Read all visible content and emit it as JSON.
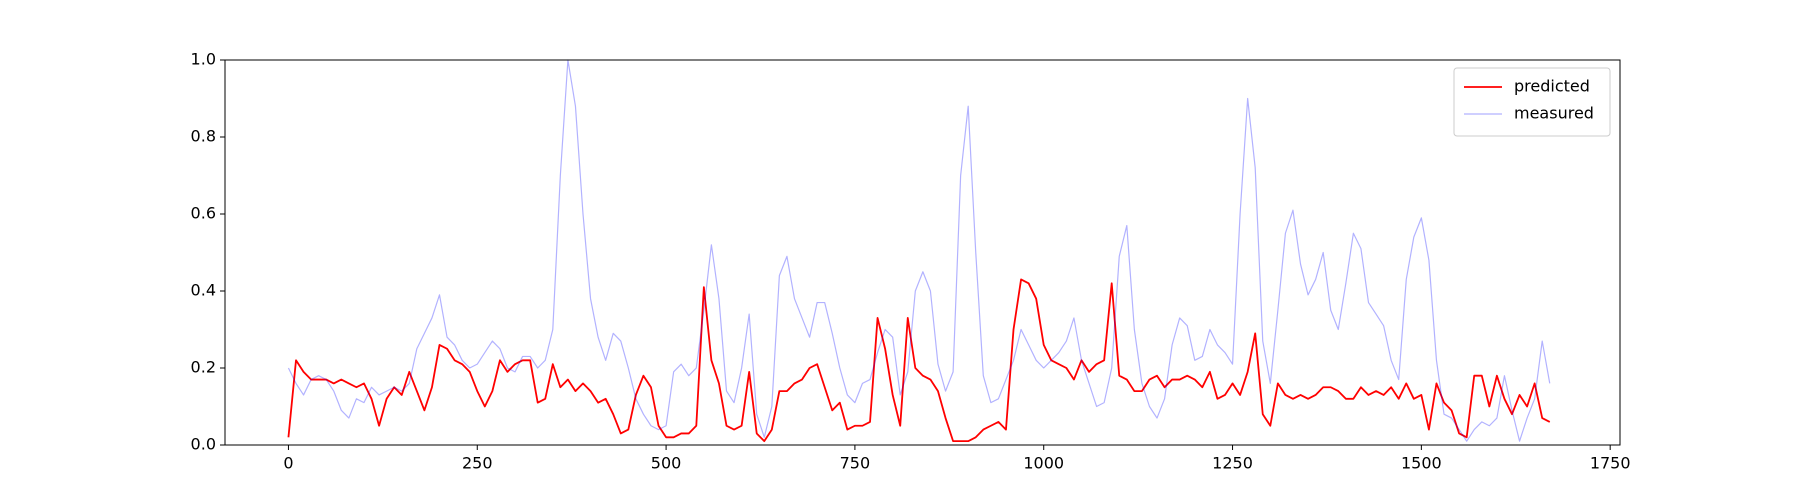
{
  "chart_data": {
    "type": "line",
    "x": [
      0,
      10,
      20,
      30,
      40,
      50,
      60,
      70,
      80,
      90,
      100,
      110,
      120,
      130,
      140,
      150,
      160,
      170,
      180,
      190,
      200,
      210,
      220,
      230,
      240,
      250,
      260,
      270,
      280,
      290,
      300,
      310,
      320,
      330,
      340,
      350,
      360,
      370,
      380,
      390,
      400,
      410,
      420,
      430,
      440,
      450,
      460,
      470,
      480,
      490,
      500,
      510,
      520,
      530,
      540,
      550,
      560,
      570,
      580,
      590,
      600,
      610,
      620,
      630,
      640,
      650,
      660,
      670,
      680,
      690,
      700,
      710,
      720,
      730,
      740,
      750,
      760,
      770,
      780,
      790,
      800,
      810,
      820,
      830,
      840,
      850,
      860,
      870,
      880,
      890,
      900,
      910,
      920,
      930,
      940,
      950,
      960,
      970,
      980,
      990,
      1000,
      1010,
      1020,
      1030,
      1040,
      1050,
      1060,
      1070,
      1080,
      1090,
      1100,
      1110,
      1120,
      1130,
      1140,
      1150,
      1160,
      1170,
      1180,
      1190,
      1200,
      1210,
      1220,
      1230,
      1240,
      1250,
      1260,
      1270,
      1280,
      1290,
      1300,
      1310,
      1320,
      1330,
      1340,
      1350,
      1360,
      1370,
      1380,
      1390,
      1400,
      1410,
      1420,
      1430,
      1440,
      1450,
      1460,
      1470,
      1480,
      1490,
      1500,
      1510,
      1520,
      1530,
      1540,
      1550,
      1560,
      1570,
      1580,
      1590,
      1600,
      1610,
      1620,
      1630,
      1640,
      1650,
      1660,
      1670
    ],
    "series": [
      {
        "name": "predicted",
        "color": "#ff0000",
        "alpha": 1,
        "width": 1.8,
        "values": [
          0.02,
          0.22,
          0.19,
          0.17,
          0.17,
          0.17,
          0.16,
          0.17,
          0.16,
          0.15,
          0.16,
          0.12,
          0.05,
          0.12,
          0.15,
          0.13,
          0.19,
          0.14,
          0.09,
          0.15,
          0.26,
          0.25,
          0.22,
          0.21,
          0.19,
          0.14,
          0.1,
          0.14,
          0.22,
          0.19,
          0.21,
          0.22,
          0.22,
          0.11,
          0.12,
          0.21,
          0.15,
          0.17,
          0.14,
          0.16,
          0.14,
          0.11,
          0.12,
          0.08,
          0.03,
          0.04,
          0.13,
          0.18,
          0.15,
          0.05,
          0.02,
          0.02,
          0.03,
          0.03,
          0.05,
          0.41,
          0.22,
          0.16,
          0.05,
          0.04,
          0.05,
          0.19,
          0.03,
          0.01,
          0.04,
          0.14,
          0.14,
          0.16,
          0.17,
          0.2,
          0.21,
          0.15,
          0.09,
          0.11,
          0.04,
          0.05,
          0.05,
          0.06,
          0.33,
          0.25,
          0.13,
          0.05,
          0.33,
          0.2,
          0.18,
          0.17,
          0.14,
          0.07,
          0.01,
          0.01,
          0.01,
          0.02,
          0.04,
          0.05,
          0.06,
          0.04,
          0.3,
          0.43,
          0.42,
          0.38,
          0.26,
          0.22,
          0.21,
          0.2,
          0.17,
          0.22,
          0.19,
          0.21,
          0.22,
          0.42,
          0.18,
          0.17,
          0.14,
          0.14,
          0.17,
          0.18,
          0.15,
          0.17,
          0.17,
          0.18,
          0.17,
          0.15,
          0.19,
          0.12,
          0.13,
          0.16,
          0.13,
          0.19,
          0.29,
          0.08,
          0.05,
          0.16,
          0.13,
          0.12,
          0.13,
          0.12,
          0.13,
          0.15,
          0.15,
          0.14,
          0.12,
          0.12,
          0.15,
          0.13,
          0.14,
          0.13,
          0.15,
          0.12,
          0.16,
          0.12,
          0.13,
          0.04,
          0.16,
          0.11,
          0.09,
          0.03,
          0.02,
          0.18,
          0.18,
          0.1,
          0.18,
          0.12,
          0.08,
          0.13,
          0.1,
          0.16,
          0.07,
          0.06
        ]
      },
      {
        "name": "measured",
        "color": "#0000ff",
        "alpha": 0.3,
        "width": 1.2,
        "values": [
          0.2,
          0.16,
          0.13,
          0.17,
          0.18,
          0.17,
          0.14,
          0.09,
          0.07,
          0.12,
          0.11,
          0.15,
          0.13,
          0.14,
          0.15,
          0.14,
          0.16,
          0.25,
          0.29,
          0.33,
          0.39,
          0.28,
          0.26,
          0.22,
          0.2,
          0.21,
          0.24,
          0.27,
          0.25,
          0.2,
          0.19,
          0.23,
          0.23,
          0.2,
          0.22,
          0.3,
          0.7,
          1.0,
          0.88,
          0.6,
          0.38,
          0.28,
          0.22,
          0.29,
          0.27,
          0.2,
          0.12,
          0.08,
          0.05,
          0.04,
          0.05,
          0.19,
          0.21,
          0.18,
          0.2,
          0.35,
          0.52,
          0.38,
          0.14,
          0.11,
          0.2,
          0.34,
          0.08,
          0.02,
          0.1,
          0.44,
          0.49,
          0.38,
          0.33,
          0.28,
          0.37,
          0.37,
          0.29,
          0.2,
          0.13,
          0.11,
          0.16,
          0.17,
          0.24,
          0.3,
          0.28,
          0.13,
          0.19,
          0.4,
          0.45,
          0.4,
          0.21,
          0.14,
          0.19,
          0.7,
          0.88,
          0.5,
          0.18,
          0.11,
          0.12,
          0.17,
          0.22,
          0.3,
          0.26,
          0.22,
          0.2,
          0.22,
          0.24,
          0.27,
          0.33,
          0.22,
          0.16,
          0.1,
          0.11,
          0.2,
          0.49,
          0.57,
          0.3,
          0.16,
          0.1,
          0.07,
          0.12,
          0.26,
          0.33,
          0.31,
          0.22,
          0.23,
          0.3,
          0.26,
          0.24,
          0.21,
          0.6,
          0.9,
          0.72,
          0.27,
          0.16,
          0.35,
          0.55,
          0.61,
          0.47,
          0.39,
          0.43,
          0.5,
          0.35,
          0.3,
          0.42,
          0.55,
          0.51,
          0.37,
          0.34,
          0.31,
          0.22,
          0.17,
          0.43,
          0.54,
          0.59,
          0.48,
          0.22,
          0.08,
          0.07,
          0.04,
          0.01,
          0.04,
          0.06,
          0.05,
          0.07,
          0.18,
          0.09,
          0.01,
          0.07,
          0.12,
          0.27,
          0.16
        ]
      }
    ],
    "xlim": [
      -84,
      1763
    ],
    "xticks": [
      0,
      250,
      500,
      750,
      1000,
      1250,
      1500,
      1750
    ],
    "ylim": [
      0,
      1
    ],
    "yticks": [
      {
        "value": 0,
        "label": "0.0"
      },
      {
        "value": 0.2,
        "label": "0.2"
      },
      {
        "value": 0.4,
        "label": "0.4"
      },
      {
        "value": 0.6,
        "label": "0.6"
      },
      {
        "value": 0.8,
        "label": "0.8"
      },
      {
        "value": 1,
        "label": "1.0"
      }
    ],
    "legend": "upper right"
  }
}
